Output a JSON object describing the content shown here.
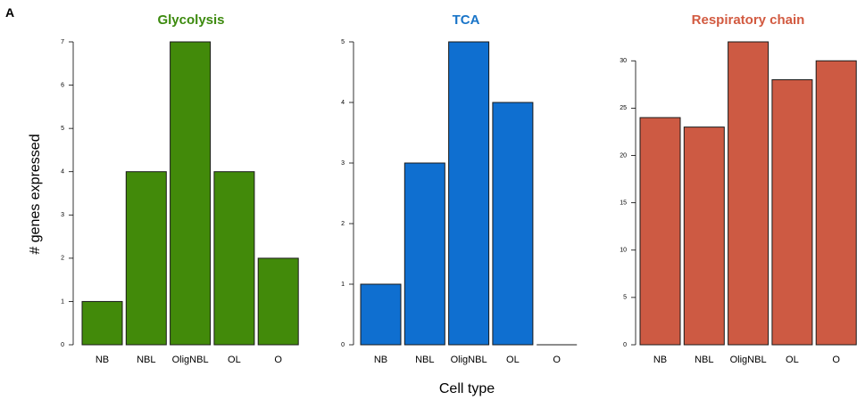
{
  "figure": {
    "panel_letter": "A",
    "ylabel": "# genes expressed",
    "xlabel": "Cell type"
  },
  "chart_data": [
    {
      "type": "bar",
      "title": "Glycolysis",
      "categories": [
        "NB",
        "NBL",
        "OligNBL",
        "OL",
        "O"
      ],
      "values": [
        1,
        4,
        7,
        4,
        2
      ],
      "ylim": [
        0,
        7
      ],
      "yticks": [
        0,
        1,
        2,
        3,
        4,
        5,
        6,
        7
      ],
      "color": "#428a0a",
      "title_color": "#3c8a0e"
    },
    {
      "type": "bar",
      "title": "TCA",
      "categories": [
        "NB",
        "NBL",
        "OligNBL",
        "OL",
        "O"
      ],
      "values": [
        1,
        3,
        5,
        4,
        0
      ],
      "ylim": [
        0,
        5
      ],
      "yticks": [
        0,
        1,
        2,
        3,
        4,
        5
      ],
      "color": "#0f6fd0",
      "title_color": "#1874c8"
    },
    {
      "type": "bar",
      "title": "Respiratory chain",
      "categories": [
        "NB",
        "NBL",
        "OligNBL",
        "OL",
        "O"
      ],
      "values": [
        24,
        23,
        32,
        28,
        30
      ],
      "ylim": [
        0,
        32
      ],
      "yticks": [
        0,
        5,
        10,
        15,
        20,
        25,
        30
      ],
      "color": "#cd5a43",
      "title_color": "#d25a40"
    }
  ]
}
